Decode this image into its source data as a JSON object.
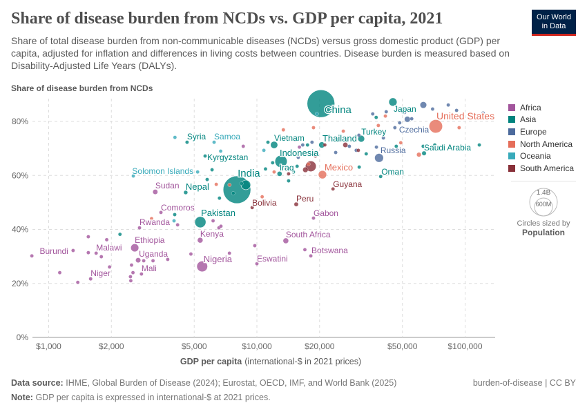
{
  "header": {
    "title": "Share of disease burden from NCDs vs. GDP per capita, 2021",
    "subtitle": "Share of total disease burden from non-communicable diseases (NCDs) versus gross domestic product (GDP) per capita, adjusted for inflation and differences in living costs between countries. Disease burden is measured based on Disability-Adjusted Life Years (DALYs).",
    "logo_line1": "Our World",
    "logo_line2": "in Data"
  },
  "legend": {
    "regions": [
      {
        "name": "Africa",
        "color": "#a2559c"
      },
      {
        "name": "Asia",
        "color": "#00847e"
      },
      {
        "name": "Europe",
        "color": "#4c6a9c"
      },
      {
        "name": "North America",
        "color": "#e56e5a"
      },
      {
        "name": "Oceania",
        "color": "#38aaba"
      },
      {
        "name": "South America",
        "color": "#883039"
      }
    ],
    "size_big": "1.4B",
    "size_small": "600M",
    "size_caption": "Circles sized by",
    "size_variable": "Population"
  },
  "footer": {
    "source_label": "Data source:",
    "source": "IHME, Global Burden of Disease (2024); Eurostat, OECD, IMF, and World Bank (2025)",
    "note_label": "Note:",
    "note": "GDP per capita is expressed in international-$ at 2021 prices.",
    "license": "burden-of-disease | CC BY"
  },
  "chart_data": {
    "type": "scatter",
    "title": "Share of disease burden from NCDs vs. GDP per capita, 2021",
    "ylabel": "Share of disease burden from NCDs",
    "xlabel_bold": "GDP per capita",
    "xlabel_rest": "(international-$ in 2021 prices)",
    "xscale": "log",
    "xlim": [
      840,
      139000
    ],
    "ylim": [
      0,
      88
    ],
    "xticks": [
      1000,
      2000,
      5000,
      10000,
      20000,
      50000,
      100000
    ],
    "xtick_labels": [
      "$1,000",
      "$2,000",
      "$5,000",
      "$10,000",
      "$20,000",
      "$50,000",
      "$100,000"
    ],
    "yticks": [
      0,
      20,
      40,
      60,
      80
    ],
    "ytick_labels": [
      "0%",
      "20%",
      "40%",
      "60%",
      "80%"
    ],
    "grid": true,
    "legend_position": "right",
    "size_by": "Population",
    "points": [
      {
        "label": "China",
        "region": "Asia",
        "x": 20300,
        "y": 86.6,
        "pop": 1410
      },
      {
        "label": "India",
        "region": "Asia",
        "x": 8020,
        "y": 54.7,
        "pop": 1410
      },
      {
        "label": "United States",
        "region": "North America",
        "x": 72300,
        "y": 78.2,
        "pop": 335
      },
      {
        "label": "Indonesia",
        "region": "Asia",
        "x": 13060,
        "y": 65.2,
        "pop": 275
      },
      {
        "label": "Pakistan",
        "region": "Asia",
        "x": 5350,
        "y": 42.7,
        "pop": 230
      },
      {
        "label": "Nigeria",
        "region": "Africa",
        "x": 5460,
        "y": 26.3,
        "pop": 215
      },
      {
        "region": "South America",
        "x": 18150,
        "y": 63.4,
        "pop": 214
      },
      {
        "region": "Asia",
        "x": 8850,
        "y": 56.5,
        "pop": 170
      },
      {
        "label": "Russia",
        "region": "Europe",
        "x": 38600,
        "y": 66.5,
        "pop": 145
      },
      {
        "label": "Mexico",
        "region": "North America",
        "x": 20650,
        "y": 60.3,
        "pop": 127
      },
      {
        "label": "Japan",
        "region": "Asia",
        "x": 45000,
        "y": 87.2,
        "pop": 125
      },
      {
        "label": "Ethiopia",
        "region": "Africa",
        "x": 2590,
        "y": 33.2,
        "pop": 120
      },
      {
        "label": "Vietnam",
        "region": "Asia",
        "x": 12100,
        "y": 71.3,
        "pop": 98
      },
      {
        "label": "Turkey",
        "region": "Asia",
        "x": 31700,
        "y": 73.6,
        "pop": 85
      },
      {
        "label": "Thailand",
        "region": "Asia",
        "x": 20500,
        "y": 71.3,
        "pop": 71
      },
      {
        "label": "Czechia",
        "region": "Europe",
        "x": 46000,
        "y": 77.7,
        "pop": 11
      },
      {
        "label": "Saudi Arabia",
        "region": "Asia",
        "x": 63500,
        "y": 68.2,
        "pop": 36
      },
      {
        "label": "Oman",
        "region": "Asia",
        "x": 39300,
        "y": 59.6,
        "pop": 5
      },
      {
        "label": "Iraq",
        "region": "Asia",
        "x": 12850,
        "y": 60.6,
        "pop": 43
      },
      {
        "label": "Guyana",
        "region": "South America",
        "x": 23200,
        "y": 55.0,
        "pop": 1
      },
      {
        "label": "Peru",
        "region": "South America",
        "x": 15450,
        "y": 49.3,
        "pop": 34
      },
      {
        "label": "Bolivia",
        "region": "South America",
        "x": 9490,
        "y": 48.1,
        "pop": 12
      },
      {
        "label": "Gabon",
        "region": "Africa",
        "x": 18700,
        "y": 44.2,
        "pop": 2
      },
      {
        "label": "South Africa",
        "region": "Africa",
        "x": 13770,
        "y": 35.8,
        "pop": 60
      },
      {
        "label": "Botswana",
        "region": "Africa",
        "x": 18150,
        "y": 30.2,
        "pop": 3
      },
      {
        "label": "Eswatini",
        "region": "Africa",
        "x": 10000,
        "y": 27.3,
        "pop": 1
      },
      {
        "label": "Kenya",
        "region": "Africa",
        "x": 5340,
        "y": 36.0,
        "pop": 54
      },
      {
        "label": "Uganda",
        "region": "Africa",
        "x": 2690,
        "y": 28.6,
        "pop": 47
      },
      {
        "label": "Mali",
        "region": "Africa",
        "x": 2790,
        "y": 23.5,
        "pop": 22
      },
      {
        "label": "Niger",
        "region": "Africa",
        "x": 1590,
        "y": 21.7,
        "pop": 25
      },
      {
        "label": "Malawi",
        "region": "Africa",
        "x": 1690,
        "y": 31.2,
        "pop": 20
      },
      {
        "label": "Burundi",
        "region": "Africa",
        "x": 1310,
        "y": 32.2,
        "pop": 13
      },
      {
        "label": "Rwanda",
        "region": "Africa",
        "x": 2730,
        "y": 40.6,
        "pop": 13
      },
      {
        "label": "Comoros",
        "region": "Africa",
        "x": 3460,
        "y": 46.3,
        "pop": 1
      },
      {
        "label": "Sudan",
        "region": "Africa",
        "x": 3250,
        "y": 53.9,
        "pop": 46
      },
      {
        "label": "Nepal",
        "region": "Asia",
        "x": 4550,
        "y": 53.7,
        "pop": 30
      },
      {
        "label": "Solomon Islands",
        "region": "Oceania",
        "x": 5190,
        "y": 61.3,
        "pop": 1
      },
      {
        "label": "Kyrgyzstan",
        "region": "Asia",
        "x": 5640,
        "y": 67.2,
        "pop": 7
      },
      {
        "label": "Syria",
        "region": "Asia",
        "x": 4620,
        "y": 72.3,
        "pop": 21
      },
      {
        "label": "Samoa",
        "region": "Oceania",
        "x": 6230,
        "y": 72.3,
        "pop": 0.2
      },
      {
        "region": "Europe",
        "x": 63000,
        "y": 86.1,
        "pop": 83
      },
      {
        "region": "Europe",
        "x": 69800,
        "y": 84.6,
        "pop": 10
      },
      {
        "region": "Europe",
        "x": 91000,
        "y": 84.1
      },
      {
        "region": "Europe",
        "x": 83000,
        "y": 86.1
      },
      {
        "region": "Europe",
        "x": 122000,
        "y": 83.1
      },
      {
        "region": "Europe",
        "x": 50800,
        "y": 83.6,
        "pop": 59
      },
      {
        "region": "Europe",
        "x": 41800,
        "y": 83.6
      },
      {
        "region": "Europe",
        "x": 36000,
        "y": 82.8
      },
      {
        "region": "Europe",
        "x": 52800,
        "y": 80.8,
        "pop": 67
      },
      {
        "region": "Europe",
        "x": 55400,
        "y": 81.0
      },
      {
        "region": "Europe",
        "x": 48500,
        "y": 79.5
      },
      {
        "region": "Europe",
        "x": 40500,
        "y": 73.9
      },
      {
        "region": "Europe",
        "x": 37400,
        "y": 76.4
      },
      {
        "region": "Europe",
        "x": 30000,
        "y": 69.3
      },
      {
        "region": "Europe",
        "x": 27800,
        "y": 70.8
      },
      {
        "region": "Europe",
        "x": 23900,
        "y": 68.5
      },
      {
        "region": "Europe",
        "x": 18400,
        "y": 72.3
      },
      {
        "region": "Europe",
        "x": 15800,
        "y": 66.7
      },
      {
        "region": "Europe",
        "x": 16600,
        "y": 71.3
      },
      {
        "region": "Europe",
        "x": 30900,
        "y": 74.9
      },
      {
        "region": "Europe",
        "x": 37500,
        "y": 70.5
      },
      {
        "region": "Asia",
        "x": 31000,
        "y": 63.1
      },
      {
        "region": "Asia",
        "x": 62900,
        "y": 70.8
      },
      {
        "region": "Asia",
        "x": 117000,
        "y": 71.3
      },
      {
        "region": "Asia",
        "x": 46700,
        "y": 70.8
      },
      {
        "region": "Asia",
        "x": 50600,
        "y": 84.1,
        "pop": 52
      },
      {
        "region": "Asia",
        "x": 37400,
        "y": 81.5
      },
      {
        "region": "Asia",
        "x": 17500,
        "y": 71.3
      },
      {
        "region": "Asia",
        "x": 15600,
        "y": 63.4
      },
      {
        "region": "Asia",
        "x": 11300,
        "y": 72.3
      },
      {
        "region": "Asia",
        "x": 11900,
        "y": 64.7
      },
      {
        "region": "Asia",
        "x": 11000,
        "y": 62.4
      },
      {
        "region": "Asia",
        "x": 5770,
        "y": 58.5
      },
      {
        "region": "Asia",
        "x": 6090,
        "y": 62.1
      },
      {
        "region": "Asia",
        "x": 6610,
        "y": 51.6
      },
      {
        "region": "Asia",
        "x": 7700,
        "y": 53.4
      },
      {
        "region": "Asia",
        "x": 8440,
        "y": 57.0
      },
      {
        "region": "Asia",
        "x": 4030,
        "y": 45.5
      },
      {
        "region": "Asia",
        "x": 2200,
        "y": 38.2
      },
      {
        "region": "Asia",
        "x": 14200,
        "y": 58.0
      },
      {
        "region": "Asia",
        "x": 14980,
        "y": 61.3
      },
      {
        "region": "Asia",
        "x": 33500,
        "y": 68.0
      },
      {
        "region": "Asia",
        "x": 71500,
        "y": 71.3
      },
      {
        "region": "North America",
        "x": 13400,
        "y": 76.9
      },
      {
        "region": "North America",
        "x": 18700,
        "y": 77.7
      },
      {
        "region": "North America",
        "x": 17700,
        "y": 64.2
      },
      {
        "region": "North America",
        "x": 12100,
        "y": 61.3
      },
      {
        "region": "North America",
        "x": 6380,
        "y": 56.7
      },
      {
        "region": "North America",
        "x": 7390,
        "y": 56.5
      },
      {
        "region": "North America",
        "x": 10600,
        "y": 52.1
      },
      {
        "region": "North America",
        "x": 41400,
        "y": 82.0
      },
      {
        "region": "North America",
        "x": 49100,
        "y": 72.1
      },
      {
        "region": "North America",
        "x": 93600,
        "y": 77.7
      },
      {
        "region": "North America",
        "x": 38300,
        "y": 78.5
      },
      {
        "region": "North America",
        "x": 60000,
        "y": 67.7,
        "pop": 38
      },
      {
        "region": "North America",
        "x": 26000,
        "y": 76.4
      },
      {
        "region": "North America",
        "x": 3120,
        "y": 44.0
      },
      {
        "region": "Oceania",
        "x": 4040,
        "y": 74.1
      },
      {
        "region": "Oceania",
        "x": 10800,
        "y": 69.3
      },
      {
        "region": "Oceania",
        "x": 19400,
        "y": 82.8
      },
      {
        "region": "Oceania",
        "x": 6700,
        "y": 69.0
      },
      {
        "region": "Oceania",
        "x": 2550,
        "y": 59.8
      },
      {
        "region": "Oceania",
        "x": 4000,
        "y": 43.2
      },
      {
        "region": "South America",
        "x": 19100,
        "y": 67.2
      },
      {
        "region": "South America",
        "x": 26600,
        "y": 71.3,
        "pop": 46
      },
      {
        "region": "South America",
        "x": 13400,
        "y": 62.6
      },
      {
        "region": "South America",
        "x": 14200,
        "y": 60.6
      },
      {
        "region": "South America",
        "x": 17100,
        "y": 62.1,
        "pop": 52
      },
      {
        "region": "South America",
        "x": 30700,
        "y": 69.3
      },
      {
        "region": "South America",
        "x": 21200,
        "y": 71.3
      },
      {
        "region": "Africa",
        "x": 8600,
        "y": 70.8
      },
      {
        "region": "Africa",
        "x": 15200,
        "y": 73.1
      },
      {
        "region": "Africa",
        "x": 16000,
        "y": 70.5
      },
      {
        "region": "Africa",
        "x": 830,
        "y": 30.2
      },
      {
        "region": "Africa",
        "x": 1130,
        "y": 24.0
      },
      {
        "region": "Africa",
        "x": 1550,
        "y": 37.3
      },
      {
        "region": "Africa",
        "x": 1550,
        "y": 31.4
      },
      {
        "region": "Africa",
        "x": 1960,
        "y": 26.1
      },
      {
        "region": "Africa",
        "x": 1380,
        "y": 20.4
      },
      {
        "region": "Africa",
        "x": 2480,
        "y": 21.0
      },
      {
        "region": "Africa",
        "x": 2500,
        "y": 26.8
      },
      {
        "region": "Africa",
        "x": 2540,
        "y": 24.0
      },
      {
        "region": "Africa",
        "x": 2860,
        "y": 28.4
      },
      {
        "region": "Africa",
        "x": 3170,
        "y": 28.4
      },
      {
        "region": "Africa",
        "x": 3730,
        "y": 28.9
      },
      {
        "region": "Africa",
        "x": 4820,
        "y": 30.9
      },
      {
        "region": "Africa",
        "x": 6160,
        "y": 43.2
      },
      {
        "region": "Africa",
        "x": 6570,
        "y": 40.6
      },
      {
        "region": "Africa",
        "x": 6720,
        "y": 41.2
      },
      {
        "region": "Africa",
        "x": 7380,
        "y": 31.2
      },
      {
        "region": "Africa",
        "x": 9770,
        "y": 34.0
      },
      {
        "region": "Africa",
        "x": 17000,
        "y": 32.5
      },
      {
        "region": "Africa",
        "x": 4160,
        "y": 41.7
      },
      {
        "region": "Africa",
        "x": 1790,
        "y": 29.9
      },
      {
        "region": "Africa",
        "x": 1900,
        "y": 36.2
      },
      {
        "region": "Africa",
        "x": 2470,
        "y": 22.5
      }
    ]
  }
}
